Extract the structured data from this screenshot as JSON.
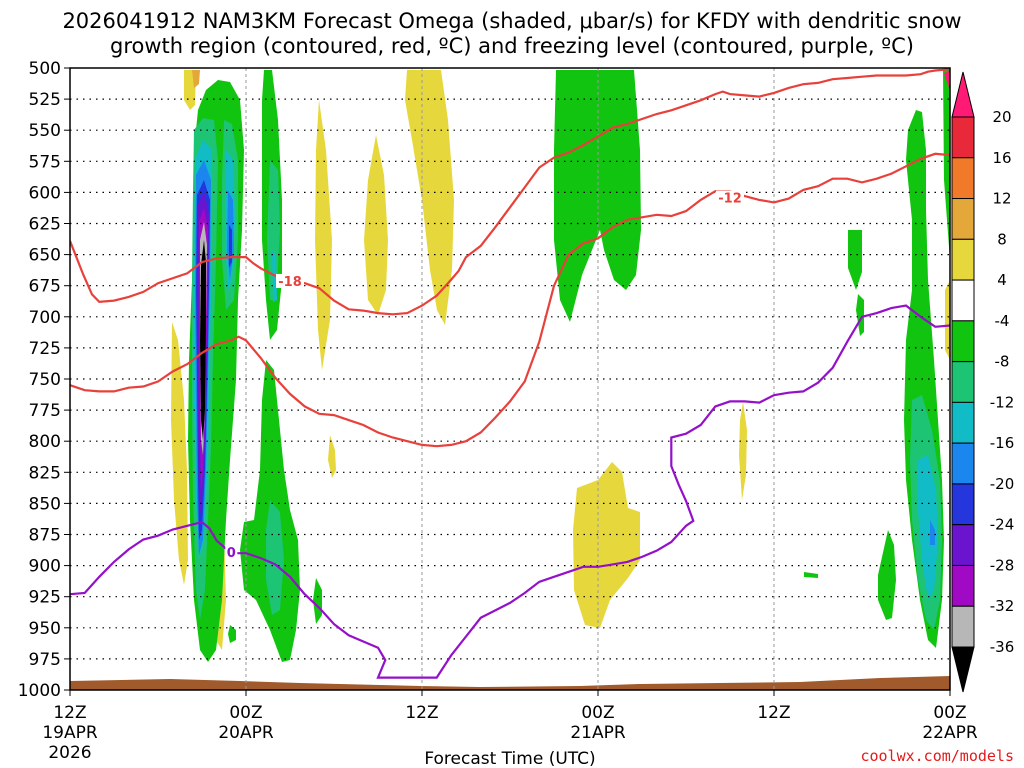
{
  "chart_data": {
    "type": "heatmap",
    "title": "2026041912 NAM3KM Forecast Omega (shaded, μbar/s) for KFDY with dendritic snow",
    "subtitle": "growth region (contoured, red, ºC) and freezing level (contoured, purple, ºC)",
    "xlabel": "Forecast Time (UTC)",
    "credit": "coolwx.com/models",
    "x_range_hours": [
      0,
      60
    ],
    "x_ticks": [
      {
        "h": 0,
        "l1": "12Z",
        "l2": "19APR",
        "l3": "2026"
      },
      {
        "h": 12,
        "l1": "00Z",
        "l2": "20APR",
        "l3": ""
      },
      {
        "h": 24,
        "l1": "12Z",
        "l2": "",
        "l3": ""
      },
      {
        "h": 36,
        "l1": "00Z",
        "l2": "21APR",
        "l3": ""
      },
      {
        "h": 48,
        "l1": "12Z",
        "l2": "",
        "l3": ""
      },
      {
        "h": 60,
        "l1": "00Z",
        "l2": "22APR",
        "l3": ""
      }
    ],
    "y_range_mb": [
      500,
      1000
    ],
    "y_ticks": [
      "500",
      "525",
      "550",
      "575",
      "600",
      "625",
      "650",
      "675",
      "700",
      "725",
      "750",
      "775",
      "800",
      "825",
      "850",
      "875",
      "900",
      "925",
      "950",
      "975",
      "1000"
    ],
    "colorbar": {
      "labels": [
        "20",
        "16",
        "12",
        "8",
        "4",
        "-4",
        "-8",
        "-12",
        "-16",
        "-20",
        "-24",
        "-28",
        "-32",
        "-36"
      ],
      "colors": [
        "#ff1a75",
        "#e8293a",
        "#f07a2a",
        "#e4a73a",
        "#e6d83c",
        "#ffffff",
        "#11c40f",
        "#1cc474",
        "#12bcc7",
        "#1a86ee",
        "#2436dc",
        "#6a14cf",
        "#a00ac5",
        "#b7b7b7",
        "#000000"
      ]
    },
    "contour_labels": [
      {
        "text": "-18",
        "color": "#e8403a",
        "h": 15,
        "mb": 672
      },
      {
        "text": "-12",
        "color": "#e8403a",
        "h": 45,
        "mb": 605
      },
      {
        "text": "0",
        "color": "#8e10c9",
        "h": 11,
        "mb": 890
      }
    ],
    "ground_color": "#a05a2c",
    "dgz_color": "#e8403a",
    "freezing_color": "#9410c9",
    "dgz_upper": [
      [
        0,
        639
      ],
      [
        0.9,
        666
      ],
      [
        1.5,
        682
      ],
      [
        2,
        688
      ],
      [
        3,
        687
      ],
      [
        4,
        684
      ],
      [
        5,
        680
      ],
      [
        6,
        673
      ],
      [
        8,
        665
      ],
      [
        9,
        656
      ],
      [
        10,
        653
      ],
      [
        11,
        652
      ],
      [
        12,
        652
      ],
      [
        12.5,
        657
      ],
      [
        13,
        661
      ],
      [
        14,
        667
      ],
      [
        15,
        671
      ],
      [
        16,
        673
      ],
      [
        17,
        677
      ],
      [
        18,
        687
      ],
      [
        19,
        694
      ],
      [
        20,
        695
      ],
      [
        21,
        697
      ],
      [
        22,
        698
      ],
      [
        23,
        697
      ],
      [
        24,
        691
      ],
      [
        25,
        683
      ],
      [
        26,
        670
      ],
      [
        26.5,
        663
      ],
      [
        27,
        652
      ],
      [
        28,
        643
      ],
      [
        29,
        628
      ],
      [
        30,
        612
      ],
      [
        31,
        596
      ],
      [
        32,
        580
      ],
      [
        33,
        572
      ],
      [
        34,
        568
      ],
      [
        35,
        562
      ],
      [
        36,
        555
      ],
      [
        37,
        548
      ],
      [
        38,
        545
      ],
      [
        39,
        541
      ],
      [
        40,
        537
      ],
      [
        41,
        534
      ],
      [
        42,
        530
      ],
      [
        43,
        526
      ],
      [
        44,
        521
      ],
      [
        44.5,
        519
      ],
      [
        45,
        521
      ],
      [
        46,
        522
      ],
      [
        47,
        523
      ],
      [
        48,
        520
      ],
      [
        49,
        516
      ],
      [
        50,
        513
      ],
      [
        51,
        512
      ],
      [
        52,
        509
      ],
      [
        53,
        508
      ],
      [
        54,
        507
      ],
      [
        55,
        506
      ],
      [
        56,
        506
      ],
      [
        57,
        506
      ],
      [
        58,
        505
      ],
      [
        58.5,
        503
      ],
      [
        59,
        502
      ],
      [
        60,
        501
      ]
    ],
    "dgz_lower": [
      [
        0,
        755
      ],
      [
        1,
        759
      ],
      [
        2,
        760
      ],
      [
        3,
        760
      ],
      [
        4,
        757
      ],
      [
        5,
        756
      ],
      [
        6,
        752
      ],
      [
        7,
        744
      ],
      [
        8,
        738
      ],
      [
        9,
        729
      ],
      [
        10,
        722
      ],
      [
        11,
        719
      ],
      [
        11.5,
        716
      ],
      [
        12,
        719
      ],
      [
        13,
        733
      ],
      [
        14,
        749
      ],
      [
        15,
        762
      ],
      [
        16,
        772
      ],
      [
        17,
        778
      ],
      [
        18,
        779
      ],
      [
        19,
        783
      ],
      [
        20,
        787
      ],
      [
        21,
        793
      ],
      [
        22,
        797
      ],
      [
        23,
        800
      ],
      [
        24,
        803
      ],
      [
        25,
        804
      ],
      [
        26,
        803
      ],
      [
        27,
        800
      ],
      [
        28,
        793
      ],
      [
        29,
        781
      ],
      [
        30,
        768
      ],
      [
        31,
        752
      ],
      [
        32,
        720
      ],
      [
        33,
        675
      ],
      [
        34,
        650
      ],
      [
        35,
        641
      ],
      [
        36,
        637
      ],
      [
        37,
        628
      ],
      [
        38,
        622
      ],
      [
        39,
        620
      ],
      [
        40,
        618
      ],
      [
        41,
        619
      ],
      [
        42,
        615
      ],
      [
        43,
        606
      ],
      [
        44,
        599
      ],
      [
        45,
        599
      ],
      [
        46,
        603
      ],
      [
        47,
        606
      ],
      [
        48,
        608
      ],
      [
        49,
        605
      ],
      [
        50,
        598
      ],
      [
        51,
        595
      ],
      [
        52,
        589
      ],
      [
        53,
        589
      ],
      [
        54,
        592
      ],
      [
        55,
        589
      ],
      [
        56,
        585
      ],
      [
        57,
        579
      ],
      [
        58,
        573
      ],
      [
        59,
        569
      ],
      [
        60,
        570
      ]
    ],
    "freezing_line": [
      [
        0,
        923
      ],
      [
        1,
        922
      ],
      [
        2,
        909
      ],
      [
        3,
        897
      ],
      [
        4,
        887
      ],
      [
        5,
        879
      ],
      [
        6,
        876
      ],
      [
        7,
        871
      ],
      [
        8,
        868
      ],
      [
        9,
        865
      ],
      [
        9.5,
        870
      ],
      [
        10,
        880
      ],
      [
        11,
        890
      ],
      [
        12,
        890
      ],
      [
        13,
        894
      ],
      [
        14,
        899
      ],
      [
        15,
        909
      ],
      [
        16,
        923
      ],
      [
        17,
        934
      ],
      [
        18,
        947
      ],
      [
        19,
        956
      ],
      [
        20,
        961
      ],
      [
        21,
        966
      ],
      [
        21.5,
        976
      ],
      [
        21,
        990
      ],
      [
        22,
        990
      ],
      [
        24,
        990
      ],
      [
        25,
        990
      ],
      [
        26,
        972
      ],
      [
        27,
        957
      ],
      [
        28,
        942
      ],
      [
        29,
        936
      ],
      [
        30,
        930
      ],
      [
        31,
        922
      ],
      [
        32,
        913
      ],
      [
        33,
        909
      ],
      [
        34,
        905
      ],
      [
        35,
        901
      ],
      [
        36,
        901
      ],
      [
        37,
        899
      ],
      [
        38,
        897
      ],
      [
        39,
        893
      ],
      [
        40,
        888
      ],
      [
        41,
        881
      ],
      [
        42,
        868
      ],
      [
        42.5,
        864
      ],
      [
        42,
        848
      ],
      [
        41.5,
        835
      ],
      [
        41,
        820
      ],
      [
        41,
        797
      ],
      [
        42,
        794
      ],
      [
        43,
        787
      ],
      [
        44,
        772
      ],
      [
        45,
        768
      ],
      [
        46,
        768
      ],
      [
        47,
        769
      ],
      [
        48,
        763
      ],
      [
        49,
        761
      ],
      [
        50,
        760
      ],
      [
        51,
        753
      ],
      [
        52,
        741
      ],
      [
        53,
        720
      ],
      [
        54,
        700
      ],
      [
        55,
        697
      ],
      [
        56,
        693
      ],
      [
        57,
        691
      ],
      [
        58,
        700
      ],
      [
        59,
        708
      ],
      [
        60,
        707
      ]
    ]
  }
}
